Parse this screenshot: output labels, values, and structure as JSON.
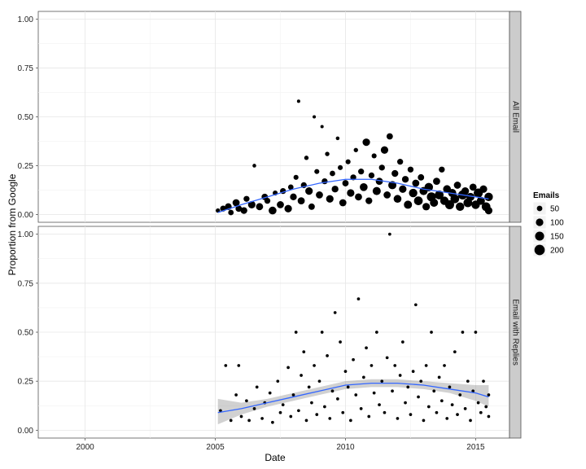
{
  "chart_data": {
    "type": "scatter",
    "xlabel": "Date",
    "ylabel": "Proportion from Google",
    "xlim": [
      1998.2,
      2016.3
    ],
    "x_ticks": [
      "2000",
      "2005",
      "2010",
      "2015"
    ],
    "x_tick_values": [
      2000,
      2005,
      2010,
      2015
    ],
    "y_ticks": [
      "0.00",
      "0.25",
      "0.50",
      "0.75",
      "1.00"
    ],
    "y_tick_values": [
      0,
      0.25,
      0.5,
      0.75,
      1.0
    ],
    "ylim": [
      -0.04,
      1.04
    ],
    "grid": true,
    "legend": {
      "title": "Emails",
      "position": "right",
      "entries": [
        {
          "label": "50",
          "size": 50
        },
        {
          "label": "100",
          "size": 100
        },
        {
          "label": "150",
          "size": 150
        },
        {
          "label": "200",
          "size": 200
        }
      ]
    },
    "colors": {
      "points": "#000000",
      "smooth": "#3366FF",
      "ribbon": "#999999",
      "strip": "#cccccc"
    },
    "panels": [
      {
        "name": "All Email",
        "points": [
          [
            2005.1,
            0.02,
            30
          ],
          [
            2005.3,
            0.03,
            60
          ],
          [
            2005.5,
            0.04,
            80
          ],
          [
            2005.6,
            0.01,
            50
          ],
          [
            2005.8,
            0.06,
            90
          ],
          [
            2005.9,
            0.03,
            70
          ],
          [
            2006.1,
            0.02,
            80
          ],
          [
            2006.2,
            0.08,
            60
          ],
          [
            2006.4,
            0.05,
            100
          ],
          [
            2006.5,
            0.25,
            20
          ],
          [
            2006.7,
            0.04,
            90
          ],
          [
            2006.9,
            0.09,
            70
          ],
          [
            2007.0,
            0.07,
            60
          ],
          [
            2007.2,
            0.02,
            110
          ],
          [
            2007.3,
            0.11,
            40
          ],
          [
            2007.5,
            0.05,
            90
          ],
          [
            2007.6,
            0.12,
            60
          ],
          [
            2007.8,
            0.03,
            100
          ],
          [
            2007.9,
            0.14,
            50
          ],
          [
            2008.0,
            0.09,
            80
          ],
          [
            2008.1,
            0.19,
            40
          ],
          [
            2008.2,
            0.58,
            15
          ],
          [
            2008.3,
            0.07,
            90
          ],
          [
            2008.4,
            0.15,
            60
          ],
          [
            2008.5,
            0.29,
            30
          ],
          [
            2008.6,
            0.12,
            100
          ],
          [
            2008.7,
            0.04,
            70
          ],
          [
            2008.8,
            0.5,
            15
          ],
          [
            2008.9,
            0.22,
            40
          ],
          [
            2009.0,
            0.1,
            90
          ],
          [
            2009.1,
            0.45,
            15
          ],
          [
            2009.2,
            0.17,
            60
          ],
          [
            2009.3,
            0.31,
            30
          ],
          [
            2009.4,
            0.08,
            100
          ],
          [
            2009.5,
            0.21,
            50
          ],
          [
            2009.6,
            0.13,
            80
          ],
          [
            2009.7,
            0.39,
            20
          ],
          [
            2009.8,
            0.24,
            40
          ],
          [
            2009.9,
            0.06,
            90
          ],
          [
            2010.0,
            0.16,
            70
          ],
          [
            2010.1,
            0.27,
            40
          ],
          [
            2010.2,
            0.11,
            100
          ],
          [
            2010.3,
            0.19,
            60
          ],
          [
            2010.4,
            0.33,
            30
          ],
          [
            2010.5,
            0.09,
            90
          ],
          [
            2010.6,
            0.22,
            60
          ],
          [
            2010.7,
            0.14,
            110
          ],
          [
            2010.8,
            0.37,
            100
          ],
          [
            2010.9,
            0.07,
            80
          ],
          [
            2011.0,
            0.2,
            60
          ],
          [
            2011.1,
            0.3,
            40
          ],
          [
            2011.2,
            0.12,
            120
          ],
          [
            2011.3,
            0.17,
            90
          ],
          [
            2011.4,
            0.24,
            60
          ],
          [
            2011.5,
            0.33,
            100
          ],
          [
            2011.6,
            0.1,
            90
          ],
          [
            2011.7,
            0.4,
            70
          ],
          [
            2011.8,
            0.15,
            120
          ],
          [
            2011.9,
            0.21,
            80
          ],
          [
            2012.0,
            0.08,
            110
          ],
          [
            2012.1,
            0.27,
            60
          ],
          [
            2012.2,
            0.13,
            100
          ],
          [
            2012.3,
            0.18,
            80
          ],
          [
            2012.4,
            0.05,
            120
          ],
          [
            2012.5,
            0.23,
            60
          ],
          [
            2012.6,
            0.11,
            130
          ],
          [
            2012.7,
            0.16,
            90
          ],
          [
            2012.8,
            0.07,
            140
          ],
          [
            2012.9,
            0.19,
            70
          ],
          [
            2013.0,
            0.12,
            120
          ],
          [
            2013.1,
            0.04,
            100
          ],
          [
            2013.2,
            0.14,
            130
          ],
          [
            2013.3,
            0.09,
            150
          ],
          [
            2013.4,
            0.06,
            120
          ],
          [
            2013.5,
            0.17,
            90
          ],
          [
            2013.6,
            0.1,
            140
          ],
          [
            2013.7,
            0.23,
            60
          ],
          [
            2013.8,
            0.07,
            130
          ],
          [
            2013.9,
            0.13,
            110
          ],
          [
            2014.0,
            0.05,
            150
          ],
          [
            2014.1,
            0.11,
            120
          ],
          [
            2014.2,
            0.08,
            140
          ],
          [
            2014.3,
            0.15,
            90
          ],
          [
            2014.4,
            0.04,
            130
          ],
          [
            2014.5,
            0.1,
            150
          ],
          [
            2014.6,
            0.12,
            100
          ],
          [
            2014.7,
            0.06,
            140
          ],
          [
            2014.8,
            0.09,
            120
          ],
          [
            2014.9,
            0.14,
            90
          ],
          [
            2015.0,
            0.05,
            130
          ],
          [
            2015.1,
            0.11,
            150
          ],
          [
            2015.2,
            0.07,
            120
          ],
          [
            2015.3,
            0.13,
            100
          ],
          [
            2015.4,
            0.04,
            140
          ],
          [
            2015.5,
            0.09,
            130
          ],
          [
            2015.5,
            0.02,
            100
          ]
        ],
        "smooth": [
          [
            2005.1,
            0.01
          ],
          [
            2006,
            0.05
          ],
          [
            2007,
            0.09
          ],
          [
            2008,
            0.13
          ],
          [
            2009,
            0.16
          ],
          [
            2010,
            0.18
          ],
          [
            2011,
            0.18
          ],
          [
            2012,
            0.16
          ],
          [
            2013,
            0.13
          ],
          [
            2014,
            0.11
          ],
          [
            2015,
            0.09
          ],
          [
            2015.5,
            0.08
          ]
        ],
        "ribbon": null
      },
      {
        "name": "Email with Replies",
        "points": [
          [
            2005.2,
            0.1,
            12
          ],
          [
            2005.4,
            0.33,
            12
          ],
          [
            2005.6,
            0.05,
            12
          ],
          [
            2005.8,
            0.18,
            12
          ],
          [
            2005.9,
            0.33,
            12
          ],
          [
            2006.0,
            0.07,
            12
          ],
          [
            2006.2,
            0.15,
            12
          ],
          [
            2006.3,
            0.05,
            12
          ],
          [
            2006.5,
            0.11,
            12
          ],
          [
            2006.6,
            0.22,
            12
          ],
          [
            2006.8,
            0.06,
            12
          ],
          [
            2006.9,
            0.14,
            12
          ],
          [
            2007.1,
            0.19,
            12
          ],
          [
            2007.2,
            0.04,
            12
          ],
          [
            2007.4,
            0.25,
            12
          ],
          [
            2007.5,
            0.09,
            12
          ],
          [
            2007.6,
            0.13,
            12
          ],
          [
            2007.8,
            0.32,
            12
          ],
          [
            2007.9,
            0.07,
            12
          ],
          [
            2008.0,
            0.18,
            12
          ],
          [
            2008.1,
            0.5,
            12
          ],
          [
            2008.2,
            0.1,
            12
          ],
          [
            2008.3,
            0.28,
            12
          ],
          [
            2008.4,
            0.4,
            12
          ],
          [
            2008.5,
            0.05,
            12
          ],
          [
            2008.6,
            0.22,
            12
          ],
          [
            2008.7,
            0.14,
            12
          ],
          [
            2008.8,
            0.33,
            12
          ],
          [
            2008.9,
            0.08,
            12
          ],
          [
            2009.0,
            0.25,
            12
          ],
          [
            2009.1,
            0.5,
            12
          ],
          [
            2009.2,
            0.12,
            12
          ],
          [
            2009.3,
            0.38,
            12
          ],
          [
            2009.4,
            0.06,
            12
          ],
          [
            2009.5,
            0.2,
            12
          ],
          [
            2009.6,
            0.6,
            12
          ],
          [
            2009.7,
            0.16,
            12
          ],
          [
            2009.8,
            0.45,
            12
          ],
          [
            2009.9,
            0.09,
            12
          ],
          [
            2010.0,
            0.3,
            12
          ],
          [
            2010.1,
            0.22,
            12
          ],
          [
            2010.2,
            0.05,
            12
          ],
          [
            2010.3,
            0.36,
            12
          ],
          [
            2010.4,
            0.18,
            12
          ],
          [
            2010.5,
            0.67,
            12
          ],
          [
            2010.6,
            0.11,
            12
          ],
          [
            2010.7,
            0.27,
            12
          ],
          [
            2010.8,
            0.42,
            12
          ],
          [
            2010.9,
            0.07,
            12
          ],
          [
            2011.0,
            0.33,
            12
          ],
          [
            2011.1,
            0.19,
            12
          ],
          [
            2011.2,
            0.5,
            12
          ],
          [
            2011.3,
            0.13,
            12
          ],
          [
            2011.4,
            0.25,
            12
          ],
          [
            2011.5,
            0.09,
            12
          ],
          [
            2011.6,
            0.37,
            12
          ],
          [
            2011.7,
            1.0,
            12
          ],
          [
            2011.8,
            0.2,
            12
          ],
          [
            2011.9,
            0.33,
            12
          ],
          [
            2012.0,
            0.06,
            12
          ],
          [
            2012.1,
            0.28,
            12
          ],
          [
            2012.2,
            0.45,
            12
          ],
          [
            2012.3,
            0.14,
            12
          ],
          [
            2012.4,
            0.22,
            12
          ],
          [
            2012.5,
            0.08,
            12
          ],
          [
            2012.6,
            0.3,
            12
          ],
          [
            2012.7,
            0.64,
            12
          ],
          [
            2012.8,
            0.17,
            12
          ],
          [
            2012.9,
            0.25,
            12
          ],
          [
            2013.0,
            0.05,
            12
          ],
          [
            2013.1,
            0.33,
            12
          ],
          [
            2013.2,
            0.12,
            12
          ],
          [
            2013.3,
            0.5,
            12
          ],
          [
            2013.4,
            0.2,
            12
          ],
          [
            2013.5,
            0.09,
            12
          ],
          [
            2013.6,
            0.27,
            12
          ],
          [
            2013.7,
            0.15,
            12
          ],
          [
            2013.8,
            0.33,
            12
          ],
          [
            2013.9,
            0.06,
            12
          ],
          [
            2014.0,
            0.22,
            12
          ],
          [
            2014.1,
            0.13,
            12
          ],
          [
            2014.2,
            0.4,
            12
          ],
          [
            2014.3,
            0.08,
            12
          ],
          [
            2014.4,
            0.18,
            12
          ],
          [
            2014.5,
            0.5,
            12
          ],
          [
            2014.6,
            0.11,
            12
          ],
          [
            2014.7,
            0.25,
            12
          ],
          [
            2014.8,
            0.05,
            12
          ],
          [
            2014.9,
            0.2,
            12
          ],
          [
            2015.0,
            0.5,
            12
          ],
          [
            2015.1,
            0.14,
            12
          ],
          [
            2015.2,
            0.09,
            12
          ],
          [
            2015.3,
            0.25,
            12
          ],
          [
            2015.4,
            0.12,
            12
          ],
          [
            2015.5,
            0.07,
            12
          ],
          [
            2015.5,
            0.18,
            12
          ]
        ],
        "smooth": [
          [
            2005.1,
            0.09
          ],
          [
            2006,
            0.11
          ],
          [
            2007,
            0.14
          ],
          [
            2008,
            0.17
          ],
          [
            2009,
            0.2
          ],
          [
            2010,
            0.23
          ],
          [
            2011,
            0.24
          ],
          [
            2012,
            0.24
          ],
          [
            2013,
            0.23
          ],
          [
            2014,
            0.21
          ],
          [
            2015,
            0.19
          ],
          [
            2015.5,
            0.17
          ]
        ],
        "ribbon": [
          [
            2005.1,
            0.03,
            0.16
          ],
          [
            2006,
            0.08,
            0.14
          ],
          [
            2007,
            0.12,
            0.16
          ],
          [
            2008,
            0.15,
            0.19
          ],
          [
            2009,
            0.18,
            0.22
          ],
          [
            2010,
            0.21,
            0.25
          ],
          [
            2011,
            0.22,
            0.26
          ],
          [
            2012,
            0.22,
            0.26
          ],
          [
            2013,
            0.21,
            0.25
          ],
          [
            2014,
            0.19,
            0.24
          ],
          [
            2015,
            0.15,
            0.23
          ],
          [
            2015.5,
            0.12,
            0.23
          ]
        ]
      }
    ]
  }
}
